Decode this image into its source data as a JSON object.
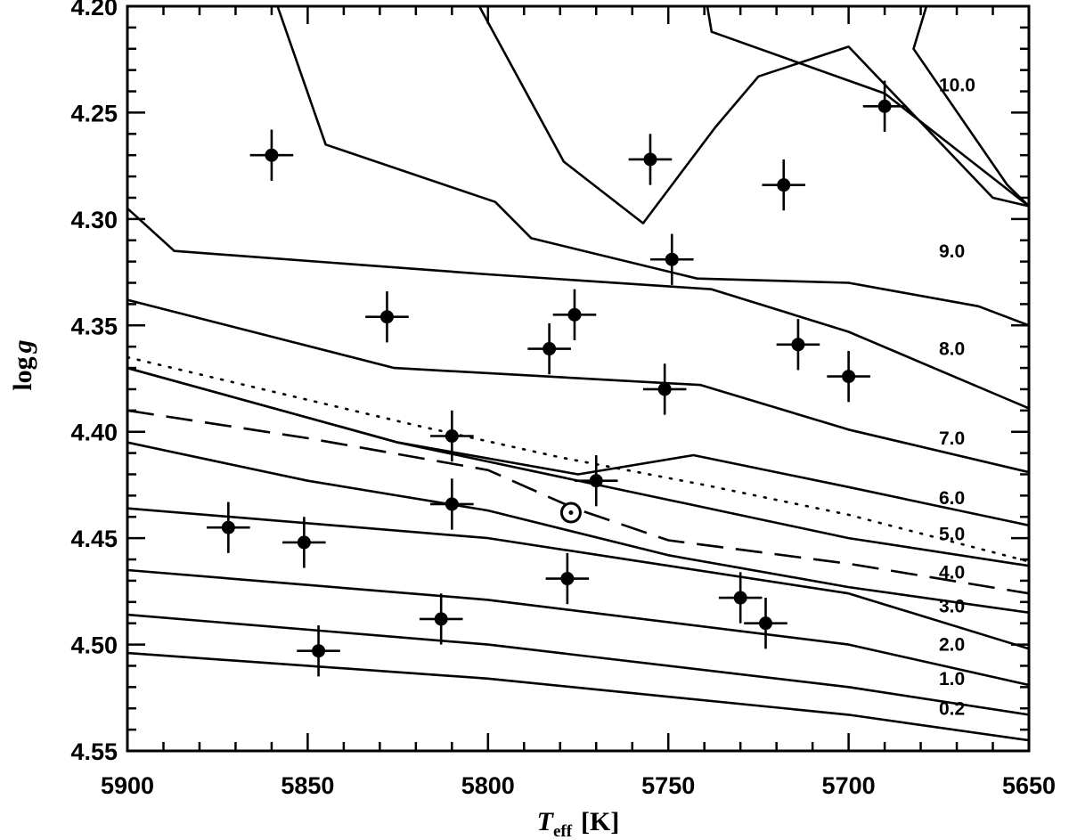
{
  "chart_data": {
    "type": "scatter",
    "xlabel": {
      "symbol": "T",
      "subscript": "eff",
      "unit": "[K]"
    },
    "ylabel": {
      "prefix": "log",
      "symbol": "g"
    },
    "xlim": [
      5900,
      5650
    ],
    "ylim": [
      4.2,
      4.55
    ],
    "x_ticks": [
      5900,
      5850,
      5800,
      5750,
      5700,
      5650
    ],
    "x_tick_labels": [
      "5900",
      "5850",
      "5800",
      "5750",
      "5700",
      "5650"
    ],
    "y_ticks": [
      4.2,
      4.25,
      4.3,
      4.35,
      4.4,
      4.45,
      4.5,
      4.55
    ],
    "y_tick_labels": [
      "4.20",
      "4.25",
      "4.30",
      "4.35",
      "4.40",
      "4.45",
      "4.50",
      "4.55"
    ],
    "grid": false,
    "isochrones": [
      {
        "label": "0.2",
        "points": [
          [
            5900,
            4.504
          ],
          [
            5800,
            4.516
          ],
          [
            5700,
            4.533
          ],
          [
            5650,
            4.545
          ]
        ]
      },
      {
        "label": "1.0",
        "points": [
          [
            5900,
            4.486
          ],
          [
            5800,
            4.5
          ],
          [
            5700,
            4.52
          ],
          [
            5650,
            4.533
          ]
        ]
      },
      {
        "label": "2.0",
        "points": [
          [
            5900,
            4.465
          ],
          [
            5800,
            4.479
          ],
          [
            5700,
            4.5
          ],
          [
            5650,
            4.519
          ]
        ]
      },
      {
        "label": "3.0",
        "points": [
          [
            5900,
            4.436
          ],
          [
            5800,
            4.45
          ],
          [
            5700,
            4.476
          ],
          [
            5650,
            4.502
          ]
        ]
      },
      {
        "label": "4.0",
        "points": [
          [
            5900,
            4.405
          ],
          [
            5850,
            4.423
          ],
          [
            5800,
            4.437
          ],
          [
            5750,
            4.458
          ],
          [
            5700,
            4.473
          ],
          [
            5650,
            4.485
          ]
        ]
      },
      {
        "label": "5.0",
        "points": [
          [
            5900,
            4.37
          ],
          [
            5825,
            4.405
          ],
          [
            5750,
            4.432
          ],
          [
            5700,
            4.45
          ],
          [
            5650,
            4.463
          ]
        ]
      },
      {
        "label": "6.0",
        "points": [
          [
            5900,
            4.37
          ],
          [
            5825,
            4.405
          ],
          [
            5775,
            4.42
          ],
          [
            5743,
            4.411
          ],
          [
            5700,
            4.426
          ],
          [
            5650,
            4.444
          ]
        ]
      },
      {
        "label": "7.0",
        "points": [
          [
            5900,
            4.338
          ],
          [
            5826,
            4.37
          ],
          [
            5741,
            4.378
          ],
          [
            5700,
            4.399
          ],
          [
            5650,
            4.419
          ]
        ]
      },
      {
        "label": "8.0",
        "points": [
          [
            5900,
            4.295
          ],
          [
            5887,
            4.315
          ],
          [
            5800,
            4.326
          ],
          [
            5738,
            4.333
          ],
          [
            5700,
            4.353
          ],
          [
            5650,
            4.389
          ]
        ]
      },
      {
        "label": "9.0",
        "points": [
          [
            5860,
            4.192
          ],
          [
            5845,
            4.265
          ],
          [
            5798,
            4.292
          ],
          [
            5788,
            4.309
          ],
          [
            5742,
            4.328
          ],
          [
            5700,
            4.33
          ],
          [
            5664,
            4.341
          ],
          [
            5650,
            4.35
          ]
        ]
      },
      {
        "label": "10.0",
        "points": [
          [
            5805,
            4.192
          ],
          [
            5779,
            4.273
          ],
          [
            5757,
            4.302
          ],
          [
            5737,
            4.257
          ],
          [
            5725,
            4.233
          ],
          [
            5700,
            4.219
          ],
          [
            5660,
            4.29
          ],
          [
            5650,
            4.294
          ]
        ]
      },
      {
        "label": "",
        "points": [
          [
            5740,
            4.192
          ],
          [
            5738,
            4.212
          ],
          [
            5690,
            4.241
          ],
          [
            5650,
            4.294
          ]
        ]
      },
      {
        "label": "",
        "points": [
          [
            5677,
            4.192
          ],
          [
            5682,
            4.22
          ],
          [
            5656,
            4.284
          ],
          [
            5650,
            4.294
          ]
        ]
      }
    ],
    "dotted_curve": [
      [
        5900,
        4.365
      ],
      [
        5860,
        4.381
      ],
      [
        5820,
        4.397
      ],
      [
        5780,
        4.412
      ],
      [
        5740,
        4.425
      ],
      [
        5700,
        4.439
      ],
      [
        5650,
        4.461
      ]
    ],
    "dashed_curve": [
      [
        5900,
        4.39
      ],
      [
        5850,
        4.403
      ],
      [
        5800,
        4.418
      ],
      [
        5776,
        4.436
      ],
      [
        5750,
        4.451
      ],
      [
        5700,
        4.462
      ],
      [
        5650,
        4.476
      ]
    ],
    "sun": {
      "x": 5777,
      "y": 4.438
    },
    "stars": [
      {
        "x": 5860,
        "y": 4.27,
        "ex": 6,
        "ey": 0.012
      },
      {
        "x": 5755,
        "y": 4.272,
        "ex": 6,
        "ey": 0.012
      },
      {
        "x": 5690,
        "y": 4.247,
        "ex": 6,
        "ey": 0.012
      },
      {
        "x": 5718,
        "y": 4.284,
        "ex": 6,
        "ey": 0.012
      },
      {
        "x": 5749,
        "y": 4.319,
        "ex": 6,
        "ey": 0.012
      },
      {
        "x": 5828,
        "y": 4.346,
        "ex": 6,
        "ey": 0.012
      },
      {
        "x": 5776,
        "y": 4.345,
        "ex": 6,
        "ey": 0.012
      },
      {
        "x": 5783,
        "y": 4.361,
        "ex": 6,
        "ey": 0.012
      },
      {
        "x": 5714,
        "y": 4.359,
        "ex": 6,
        "ey": 0.012
      },
      {
        "x": 5751,
        "y": 4.38,
        "ex": 6,
        "ey": 0.012
      },
      {
        "x": 5700,
        "y": 4.374,
        "ex": 6,
        "ey": 0.012
      },
      {
        "x": 5810,
        "y": 4.402,
        "ex": 6,
        "ey": 0.012
      },
      {
        "x": 5770,
        "y": 4.423,
        "ex": 6,
        "ey": 0.012
      },
      {
        "x": 5810,
        "y": 4.434,
        "ex": 6,
        "ey": 0.012
      },
      {
        "x": 5872,
        "y": 4.445,
        "ex": 6,
        "ey": 0.012
      },
      {
        "x": 5851,
        "y": 4.452,
        "ex": 6,
        "ey": 0.012
      },
      {
        "x": 5778,
        "y": 4.469,
        "ex": 6,
        "ey": 0.012
      },
      {
        "x": 5730,
        "y": 4.478,
        "ex": 6,
        "ey": 0.012
      },
      {
        "x": 5723,
        "y": 4.49,
        "ex": 6,
        "ey": 0.012
      },
      {
        "x": 5813,
        "y": 4.488,
        "ex": 6,
        "ey": 0.012
      },
      {
        "x": 5847,
        "y": 4.503,
        "ex": 6,
        "ey": 0.012
      }
    ]
  }
}
